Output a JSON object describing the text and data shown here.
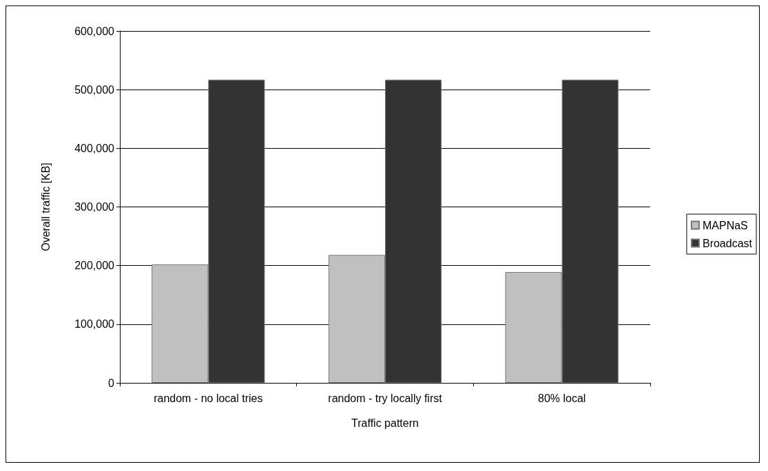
{
  "chart_data": {
    "type": "bar",
    "xlabel": "Traffic pattern",
    "ylabel": "Overall traffic [KB]",
    "categories": [
      "random - no local tries",
      "random - try locally first",
      "80% local"
    ],
    "series": [
      {
        "name": "MAPNaS",
        "color": "#c0c0c0",
        "values": [
          202000,
          218000,
          189000
        ]
      },
      {
        "name": "Broadcast",
        "color": "#333333",
        "values": [
          517000,
          517000,
          517000
        ]
      }
    ],
    "ylim": [
      0,
      600000
    ],
    "yticks": [
      0,
      {
        "value": 100000,
        "label": "100,000"
      },
      {
        "value": 200000,
        "label": "200,000"
      },
      {
        "value": 300000,
        "label": "300,000"
      },
      {
        "value": 400000,
        "label": "400,000"
      },
      {
        "value": 500000,
        "label": "500,000"
      },
      {
        "value": 600000,
        "label": "600,000"
      }
    ],
    "grid": "y",
    "legend": "right"
  }
}
